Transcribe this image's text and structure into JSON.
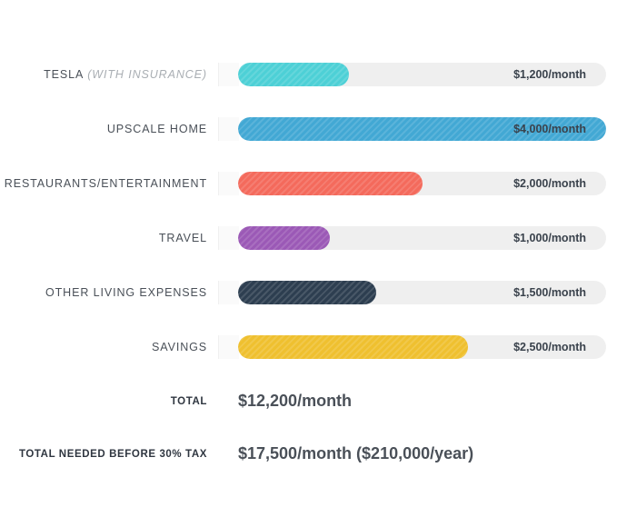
{
  "chart_data": {
    "type": "bar",
    "orientation": "horizontal",
    "max_value": 4000,
    "categories": [
      {
        "label": "TESLA",
        "sublabel": "(WITH INSURANCE)",
        "value": 1200,
        "value_label": "$1,200/month",
        "color": "#4dd0d6"
      },
      {
        "label": "UPSCALE HOME",
        "sublabel": "",
        "value": 4000,
        "value_label": "$4,000/month",
        "color": "#42a8d4"
      },
      {
        "label": "RESTAURANTS/ENTERTAINMENT",
        "sublabel": "",
        "value": 2000,
        "value_label": "$2,000/month",
        "color": "#f46a5c"
      },
      {
        "label": "TRAVEL",
        "sublabel": "",
        "value": 1000,
        "value_label": "$1,000/month",
        "color": "#9b59b6"
      },
      {
        "label": "OTHER LIVING EXPENSES",
        "sublabel": "",
        "value": 1500,
        "value_label": "$1,500/month",
        "color": "#2d3e50"
      },
      {
        "label": "SAVINGS",
        "sublabel": "",
        "value": 2500,
        "value_label": "$2,500/month",
        "color": "#efc02f"
      }
    ],
    "track_color": "#efefef"
  },
  "totals": {
    "total_label": "TOTAL",
    "total_value": "$12,200/month",
    "pretax_label": "TOTAL NEEDED BEFORE 30% TAX",
    "pretax_value": "$17,500/month ($210,000/year)"
  }
}
